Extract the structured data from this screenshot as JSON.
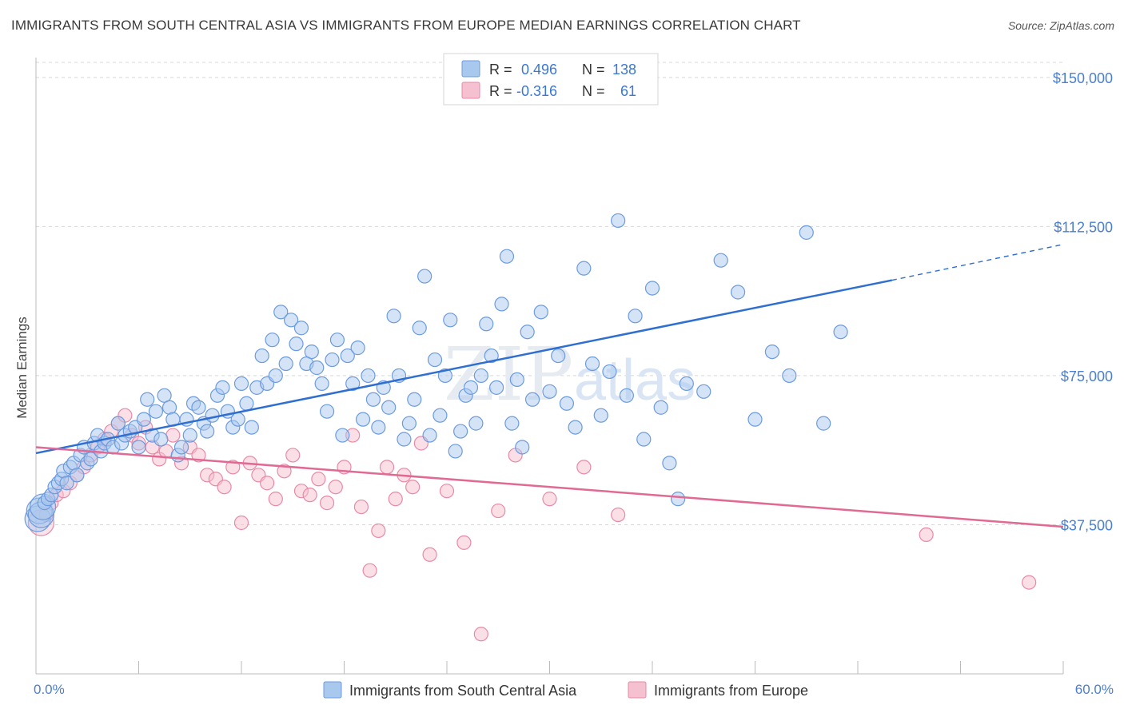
{
  "title": "IMMIGRANTS FROM SOUTH CENTRAL ASIA VS IMMIGRANTS FROM EUROPE MEDIAN EARNINGS CORRELATION CHART",
  "source": "Source: ZipAtlas.com",
  "watermark": {
    "zip": "ZIP",
    "atlas": "atlas"
  },
  "legend": {
    "r_label": "R =",
    "n_label": "N =",
    "series": [
      {
        "r": "0.496",
        "n": "138"
      },
      {
        "r": "-0.316",
        "n": "61"
      }
    ]
  },
  "colors": {
    "blue_fill": "#a9c8ee",
    "blue_stroke": "#6b9be0",
    "blue_line": "#2f6fcf",
    "pink_fill": "#f5c0cf",
    "pink_stroke": "#e88aa6",
    "pink_line": "#e06a93",
    "grid": "#d8d8d8"
  },
  "chart_data": {
    "type": "scatter",
    "title": "IMMIGRANTS FROM SOUTH CENTRAL ASIA VS IMMIGRANTS FROM EUROPE MEDIAN EARNINGS CORRELATION CHART",
    "xlabel": "",
    "ylabel": "Median Earnings",
    "xlim": [
      0,
      60
    ],
    "ylim": [
      0,
      155000
    ],
    "x_tick_labels": [
      "0.0%",
      "60.0%"
    ],
    "y_ticks": [
      37500,
      75000,
      112500,
      150000
    ],
    "y_tick_labels": [
      "$37,500",
      "$75,000",
      "$112,500",
      "$150,000"
    ],
    "grid": true,
    "legend_position": "top-center",
    "series": [
      {
        "name": "Immigrants from South Central Asia",
        "trend": {
          "x0": 0,
          "y0": 55500,
          "x1": 50,
          "y1": 99000,
          "x_dash_end": 60,
          "y_dash_end": 108000
        },
        "points": [
          [
            0.1,
            39000
          ],
          [
            0.2,
            41000
          ],
          [
            0.3,
            40000
          ],
          [
            0.4,
            42000
          ],
          [
            0.5,
            43000
          ],
          [
            0.7,
            44000
          ],
          [
            0.9,
            45000
          ],
          [
            1.1,
            47000
          ],
          [
            1.3,
            48000
          ],
          [
            1.5,
            49000
          ],
          [
            1.6,
            51000
          ],
          [
            1.8,
            48000
          ],
          [
            2.0,
            52000
          ],
          [
            2.2,
            53000
          ],
          [
            2.4,
            50000
          ],
          [
            2.6,
            55000
          ],
          [
            2.8,
            57000
          ],
          [
            3.0,
            53000
          ],
          [
            3.2,
            54000
          ],
          [
            3.4,
            58000
          ],
          [
            3.6,
            60000
          ],
          [
            3.8,
            56000
          ],
          [
            4.0,
            58000
          ],
          [
            4.2,
            59000
          ],
          [
            4.5,
            57000
          ],
          [
            4.8,
            63000
          ],
          [
            5.0,
            58000
          ],
          [
            5.2,
            60000
          ],
          [
            5.5,
            61000
          ],
          [
            5.8,
            62000
          ],
          [
            6.0,
            57000
          ],
          [
            6.3,
            64000
          ],
          [
            6.5,
            69000
          ],
          [
            6.8,
            60000
          ],
          [
            7.0,
            66000
          ],
          [
            7.3,
            59000
          ],
          [
            7.5,
            70000
          ],
          [
            7.8,
            67000
          ],
          [
            8.0,
            64000
          ],
          [
            8.3,
            55000
          ],
          [
            8.5,
            57000
          ],
          [
            8.8,
            64000
          ],
          [
            9.0,
            60000
          ],
          [
            9.2,
            68000
          ],
          [
            9.5,
            67000
          ],
          [
            9.8,
            63000
          ],
          [
            10.0,
            61000
          ],
          [
            10.3,
            65000
          ],
          [
            10.6,
            70000
          ],
          [
            10.9,
            72000
          ],
          [
            11.2,
            66000
          ],
          [
            11.5,
            62000
          ],
          [
            11.8,
            64000
          ],
          [
            12.0,
            73000
          ],
          [
            12.3,
            68000
          ],
          [
            12.6,
            62000
          ],
          [
            12.9,
            72000
          ],
          [
            13.2,
            80000
          ],
          [
            13.5,
            73000
          ],
          [
            13.8,
            84000
          ],
          [
            14.0,
            75000
          ],
          [
            14.3,
            91000
          ],
          [
            14.6,
            78000
          ],
          [
            14.9,
            89000
          ],
          [
            15.2,
            83000
          ],
          [
            15.5,
            87000
          ],
          [
            15.8,
            78000
          ],
          [
            16.1,
            81000
          ],
          [
            16.4,
            77000
          ],
          [
            16.7,
            73000
          ],
          [
            17.0,
            66000
          ],
          [
            17.3,
            79000
          ],
          [
            17.6,
            84000
          ],
          [
            17.9,
            60000
          ],
          [
            18.2,
            80000
          ],
          [
            18.5,
            73000
          ],
          [
            18.8,
            82000
          ],
          [
            19.1,
            64000
          ],
          [
            19.4,
            75000
          ],
          [
            19.7,
            69000
          ],
          [
            20.0,
            62000
          ],
          [
            20.3,
            72000
          ],
          [
            20.6,
            67000
          ],
          [
            20.9,
            90000
          ],
          [
            21.2,
            75000
          ],
          [
            21.5,
            59000
          ],
          [
            21.8,
            63000
          ],
          [
            22.1,
            69000
          ],
          [
            22.4,
            87000
          ],
          [
            22.7,
            100000
          ],
          [
            23.0,
            60000
          ],
          [
            23.3,
            79000
          ],
          [
            23.6,
            65000
          ],
          [
            23.9,
            75000
          ],
          [
            24.2,
            89000
          ],
          [
            24.5,
            56000
          ],
          [
            24.8,
            61000
          ],
          [
            25.1,
            70000
          ],
          [
            25.4,
            72000
          ],
          [
            25.7,
            63000
          ],
          [
            26.0,
            75000
          ],
          [
            26.3,
            88000
          ],
          [
            26.6,
            80000
          ],
          [
            26.9,
            72000
          ],
          [
            27.2,
            93000
          ],
          [
            27.5,
            105000
          ],
          [
            27.8,
            63000
          ],
          [
            28.1,
            74000
          ],
          [
            28.4,
            57000
          ],
          [
            28.7,
            86000
          ],
          [
            29.0,
            69000
          ],
          [
            29.5,
            91000
          ],
          [
            30.0,
            71000
          ],
          [
            30.5,
            80000
          ],
          [
            31.0,
            68000
          ],
          [
            31.5,
            62000
          ],
          [
            32.0,
            102000
          ],
          [
            32.5,
            78000
          ],
          [
            33.0,
            65000
          ],
          [
            33.5,
            76000
          ],
          [
            34.0,
            114000
          ],
          [
            34.5,
            70000
          ],
          [
            35.0,
            90000
          ],
          [
            35.5,
            59000
          ],
          [
            36.0,
            97000
          ],
          [
            36.5,
            67000
          ],
          [
            37.0,
            53000
          ],
          [
            37.5,
            44000
          ],
          [
            38.0,
            73000
          ],
          [
            39.0,
            71000
          ],
          [
            40.0,
            104000
          ],
          [
            41.0,
            96000
          ],
          [
            42.0,
            64000
          ],
          [
            43.0,
            81000
          ],
          [
            44.0,
            75000
          ],
          [
            45.0,
            111000
          ],
          [
            46.0,
            63000
          ],
          [
            47.0,
            86000
          ]
        ]
      },
      {
        "name": "Immigrants from Europe",
        "trend": {
          "x0": 0,
          "y0": 57000,
          "x1": 60,
          "y1": 37000
        },
        "points": [
          [
            0.3,
            38000
          ],
          [
            0.6,
            40000
          ],
          [
            0.9,
            43000
          ],
          [
            1.2,
            45000
          ],
          [
            1.6,
            46000
          ],
          [
            2.0,
            48000
          ],
          [
            2.4,
            50000
          ],
          [
            2.8,
            52000
          ],
          [
            3.2,
            55000
          ],
          [
            3.6,
            57000
          ],
          [
            4.0,
            59000
          ],
          [
            4.4,
            61000
          ],
          [
            4.8,
            63000
          ],
          [
            5.2,
            65000
          ],
          [
            5.6,
            60000
          ],
          [
            6.0,
            58000
          ],
          [
            6.4,
            62000
          ],
          [
            6.8,
            57000
          ],
          [
            7.2,
            54000
          ],
          [
            7.6,
            56000
          ],
          [
            8.0,
            60000
          ],
          [
            8.5,
            53000
          ],
          [
            9.0,
            57000
          ],
          [
            9.5,
            55000
          ],
          [
            10.0,
            50000
          ],
          [
            10.5,
            49000
          ],
          [
            11.0,
            47000
          ],
          [
            11.5,
            52000
          ],
          [
            12.0,
            38000
          ],
          [
            12.5,
            53000
          ],
          [
            13.0,
            50000
          ],
          [
            13.5,
            48000
          ],
          [
            14.0,
            44000
          ],
          [
            14.5,
            51000
          ],
          [
            15.0,
            55000
          ],
          [
            15.5,
            46000
          ],
          [
            16.0,
            45000
          ],
          [
            16.5,
            49000
          ],
          [
            17.0,
            43000
          ],
          [
            17.5,
            47000
          ],
          [
            18.0,
            52000
          ],
          [
            18.5,
            60000
          ],
          [
            19.0,
            42000
          ],
          [
            19.5,
            26000
          ],
          [
            20.0,
            36000
          ],
          [
            20.5,
            52000
          ],
          [
            21.0,
            44000
          ],
          [
            21.5,
            50000
          ],
          [
            22.0,
            47000
          ],
          [
            22.5,
            58000
          ],
          [
            23.0,
            30000
          ],
          [
            24.0,
            46000
          ],
          [
            25.0,
            33000
          ],
          [
            26.0,
            10000
          ],
          [
            27.0,
            41000
          ],
          [
            28.0,
            55000
          ],
          [
            30.0,
            44000
          ],
          [
            32.0,
            52000
          ],
          [
            34.0,
            40000
          ],
          [
            52.0,
            35000
          ],
          [
            58.0,
            23000
          ]
        ]
      }
    ]
  }
}
